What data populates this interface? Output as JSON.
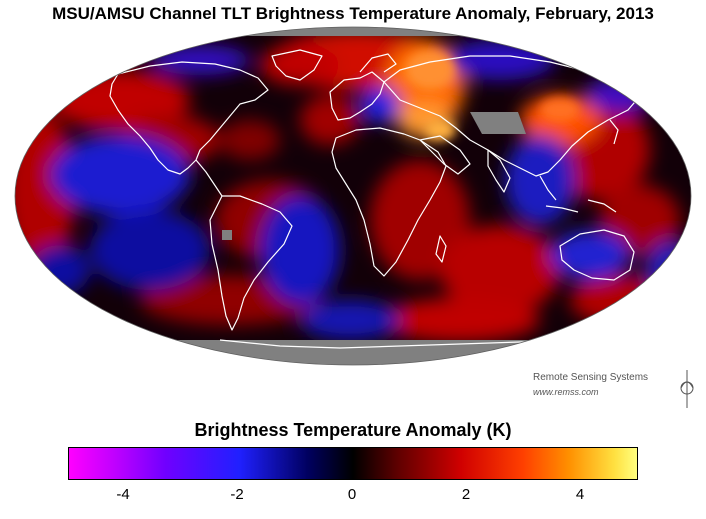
{
  "title": "MSU/AMSU Channel TLT Brightness Temperature Anomaly, February, 2013",
  "credit": {
    "name": "Remote Sensing Systems",
    "url": "www.remss.com"
  },
  "colorbar": {
    "title": "Brightness Temperature Anomaly (K)",
    "range": [
      -5,
      5
    ],
    "ticks": [
      {
        "label": "-4",
        "value": -4
      },
      {
        "label": "-2",
        "value": -2
      },
      {
        "label": "0",
        "value": 0
      },
      {
        "label": "2",
        "value": 2
      },
      {
        "label": "4",
        "value": 4
      }
    ],
    "colors": [
      "#ff00ff",
      "#7000ff",
      "#2020ff",
      "#000060",
      "#000000",
      "#600000",
      "#d00000",
      "#ff4000",
      "#ff9000",
      "#ffff80"
    ]
  },
  "map": {
    "projection": "Mollweide",
    "missing_color": "#808080",
    "coastline_color": "#ffffff"
  }
}
